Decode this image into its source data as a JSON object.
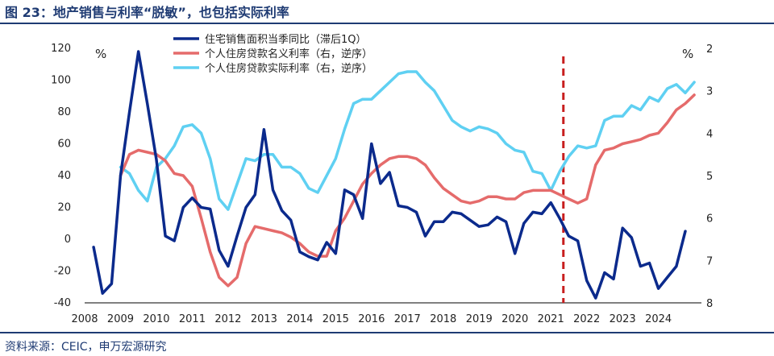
{
  "title": "图 23：地产销售与利率“脱敏”，也包括实际利率",
  "source": "资料来源：CEIC，申万宏源研究",
  "colors": {
    "sales": "#0b2a8c",
    "nominal": "#e56b6b",
    "real": "#5fd0f2",
    "marker": "#c81e1e"
  },
  "chart_data": {
    "type": "line",
    "left_unit": "%",
    "right_unit": "%",
    "left_ylim": [
      -40,
      120
    ],
    "left_ticks": [
      120,
      100,
      80,
      60,
      40,
      20,
      0,
      -20,
      -40
    ],
    "right_ylim": [
      8,
      2
    ],
    "right_ticks": [
      2,
      3,
      4,
      5,
      6,
      7,
      8
    ],
    "right_reversed": true,
    "xlim": [
      2008,
      2025.2
    ],
    "x_ticks": [
      "2008",
      "2009",
      "2010",
      "2011",
      "2012",
      "2013",
      "2014",
      "2015",
      "2016",
      "2017",
      "2018",
      "2019",
      "2020",
      "2021",
      "2022",
      "2023",
      "2024"
    ],
    "vline_x": 2021.35,
    "legend": "top-center",
    "series": [
      {
        "name": "住宅销售面积当季同比（滞后1Q）",
        "axis": "left",
        "x": [
          2008.25,
          2008.5,
          2008.75,
          2009.0,
          2009.25,
          2009.5,
          2009.75,
          2010.0,
          2010.25,
          2010.5,
          2010.75,
          2011.0,
          2011.25,
          2011.5,
          2011.75,
          2012.0,
          2012.25,
          2012.5,
          2012.75,
          2013.0,
          2013.25,
          2013.5,
          2013.75,
          2014.0,
          2014.25,
          2014.5,
          2014.75,
          2015.0,
          2015.25,
          2015.5,
          2015.75,
          2016.0,
          2016.25,
          2016.5,
          2016.75,
          2017.0,
          2017.25,
          2017.5,
          2017.75,
          2018.0,
          2018.25,
          2018.5,
          2018.75,
          2019.0,
          2019.25,
          2019.5,
          2019.75,
          2020.0,
          2020.25,
          2020.5,
          2020.75,
          2021.0,
          2021.25,
          2021.5,
          2021.75,
          2022.0,
          2022.25,
          2022.5,
          2022.75,
          2023.0,
          2023.25,
          2023.5,
          2023.75,
          2024.0,
          2024.25,
          2024.5,
          2024.75
        ],
        "values": [
          -5,
          -34,
          -28,
          40,
          80,
          118,
          85,
          50,
          2,
          -1,
          20,
          26,
          20,
          19,
          -7,
          -17,
          2,
          20,
          28,
          69,
          31,
          18,
          12,
          -8,
          -11,
          -13,
          -2,
          -9,
          31,
          28,
          13,
          60,
          35,
          42,
          21,
          20,
          17,
          2,
          11,
          11,
          17,
          16,
          12,
          8,
          9,
          14,
          11,
          -9,
          10,
          17,
          16,
          23,
          13,
          2,
          -1,
          -26,
          -37,
          -21,
          -25,
          7,
          1,
          -17,
          -15,
          -31,
          -24,
          -17,
          5
        ]
      },
      {
        "name": "个人住房贷款名义利率（右，逆序）",
        "axis": "right",
        "x": [
          2009.0,
          2009.25,
          2009.5,
          2009.75,
          2010.0,
          2010.25,
          2010.5,
          2010.75,
          2011.0,
          2011.25,
          2011.5,
          2011.75,
          2012.0,
          2012.25,
          2012.5,
          2012.75,
          2013.0,
          2013.25,
          2013.5,
          2013.75,
          2014.0,
          2014.25,
          2014.5,
          2014.75,
          2015.0,
          2015.25,
          2015.5,
          2015.75,
          2016.0,
          2016.25,
          2016.5,
          2016.75,
          2017.0,
          2017.25,
          2017.5,
          2017.75,
          2018.0,
          2018.25,
          2018.5,
          2018.75,
          2019.0,
          2019.25,
          2019.5,
          2019.75,
          2020.0,
          2020.25,
          2020.5,
          2020.75,
          2021.0,
          2021.25,
          2021.5,
          2021.75,
          2022.0,
          2022.25,
          2022.5,
          2022.75,
          2023.0,
          2023.25,
          2023.5,
          2023.75,
          2024.0,
          2024.25,
          2024.5,
          2024.75,
          2025.0
        ],
        "values": [
          5.0,
          4.5,
          4.4,
          4.45,
          4.5,
          4.65,
          4.95,
          5.0,
          5.25,
          6.0,
          6.8,
          7.4,
          7.6,
          7.4,
          6.6,
          6.2,
          6.25,
          6.3,
          6.35,
          6.45,
          6.6,
          6.8,
          6.9,
          6.9,
          6.3,
          6.0,
          5.6,
          5.2,
          4.95,
          4.75,
          4.6,
          4.55,
          4.55,
          4.6,
          4.75,
          5.05,
          5.3,
          5.45,
          5.6,
          5.65,
          5.6,
          5.5,
          5.5,
          5.55,
          5.55,
          5.4,
          5.35,
          5.35,
          5.35,
          5.45,
          5.55,
          5.65,
          5.55,
          4.75,
          4.4,
          4.35,
          4.25,
          4.2,
          4.15,
          4.05,
          4.0,
          3.75,
          3.45,
          3.3,
          3.1
        ]
      },
      {
        "name": "个人住房贷款实际利率（右，逆序）",
        "axis": "right",
        "x": [
          2009.0,
          2009.25,
          2009.5,
          2009.75,
          2010.0,
          2010.25,
          2010.5,
          2010.75,
          2011.0,
          2011.25,
          2011.5,
          2011.75,
          2012.0,
          2012.25,
          2012.5,
          2012.75,
          2013.0,
          2013.25,
          2013.5,
          2013.75,
          2014.0,
          2014.25,
          2014.5,
          2014.75,
          2015.0,
          2015.25,
          2015.5,
          2015.75,
          2016.0,
          2016.25,
          2016.5,
          2016.75,
          2017.0,
          2017.25,
          2017.5,
          2017.75,
          2018.0,
          2018.25,
          2018.5,
          2018.75,
          2019.0,
          2019.25,
          2019.5,
          2019.75,
          2020.0,
          2020.25,
          2020.5,
          2020.75,
          2021.0,
          2021.25,
          2021.5,
          2021.75,
          2022.0,
          2022.25,
          2022.5,
          2022.75,
          2023.0,
          2023.25,
          2023.5,
          2023.75,
          2024.0,
          2024.25,
          2024.5,
          2024.75,
          2025.0
        ],
        "values": [
          4.8,
          4.95,
          5.35,
          5.6,
          4.8,
          4.6,
          4.3,
          3.85,
          3.8,
          4.0,
          4.6,
          5.55,
          5.8,
          5.2,
          4.6,
          4.65,
          4.5,
          4.5,
          4.8,
          4.8,
          4.95,
          5.3,
          5.4,
          5.0,
          4.6,
          3.9,
          3.3,
          3.2,
          3.2,
          3.0,
          2.8,
          2.6,
          2.55,
          2.55,
          2.8,
          3.0,
          3.35,
          3.7,
          3.85,
          3.95,
          3.85,
          3.9,
          4.0,
          4.25,
          4.4,
          4.45,
          4.9,
          4.95,
          5.35,
          4.9,
          4.55,
          4.3,
          4.35,
          4.3,
          3.7,
          3.6,
          3.6,
          3.35,
          3.45,
          3.15,
          3.25,
          2.95,
          2.85,
          3.05,
          2.8
        ]
      }
    ]
  }
}
